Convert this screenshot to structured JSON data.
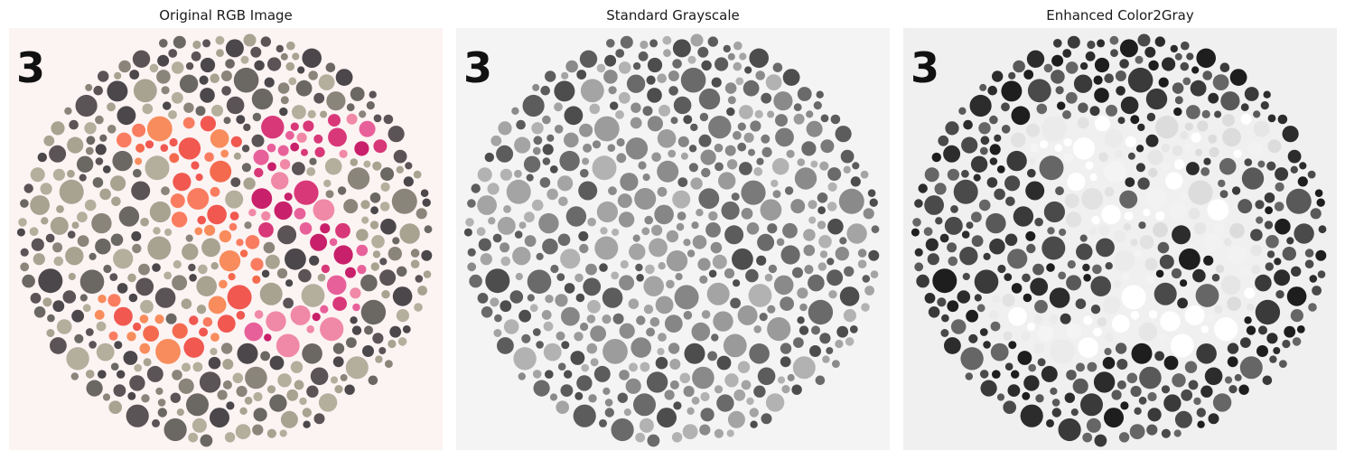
{
  "panels": [
    {
      "title": "Original RGB Image",
      "plate_number": "3",
      "mode": "rgb",
      "background": "#fcf3f3",
      "dot_colors": [
        "#4b474a",
        "#5a5456",
        "#6b6763",
        "#a8a290",
        "#b4ae9c",
        "#8a857a"
      ],
      "figure_colors_left": [
        "#f46a4e",
        "#f88c5c",
        "#f05850",
        "#fa7c60"
      ],
      "figure_colors_right": [
        "#c8206a",
        "#e8609a",
        "#f088a8",
        "#d83878"
      ]
    },
    {
      "title": "Standard Grayscale",
      "plate_number": "3",
      "mode": "gray",
      "background": "#f4f4f4",
      "dot_colors": [
        "#4d4d4d",
        "#5c5c5c",
        "#6a6a6a",
        "#a4a4a4",
        "#b2b2b2",
        "#8a8a8a"
      ],
      "figure_colors_left": [
        "#8c8c8c",
        "#9c9c9c",
        "#868686",
        "#949494"
      ],
      "figure_colors_right": [
        "#6a6a6a",
        "#8a8a8a",
        "#9a9a9a",
        "#7a7a7a"
      ]
    },
    {
      "title": "Enhanced Color2Gray",
      "plate_number": "3",
      "mode": "enhanced",
      "background": "#f0f0f0",
      "dot_colors": [
        "#1e1e1e",
        "#2c2c2c",
        "#3a3a3a",
        "#4a4a4a",
        "#666666",
        "#595959"
      ],
      "figure_colors_left": [
        "#f4f4f4",
        "#ebebeb",
        "#ffffff",
        "#e2e2e2"
      ],
      "figure_colors_right": [
        "#f2f2f2",
        "#e6e6e6",
        "#ffffff",
        "#dcdcdc"
      ]
    }
  ]
}
